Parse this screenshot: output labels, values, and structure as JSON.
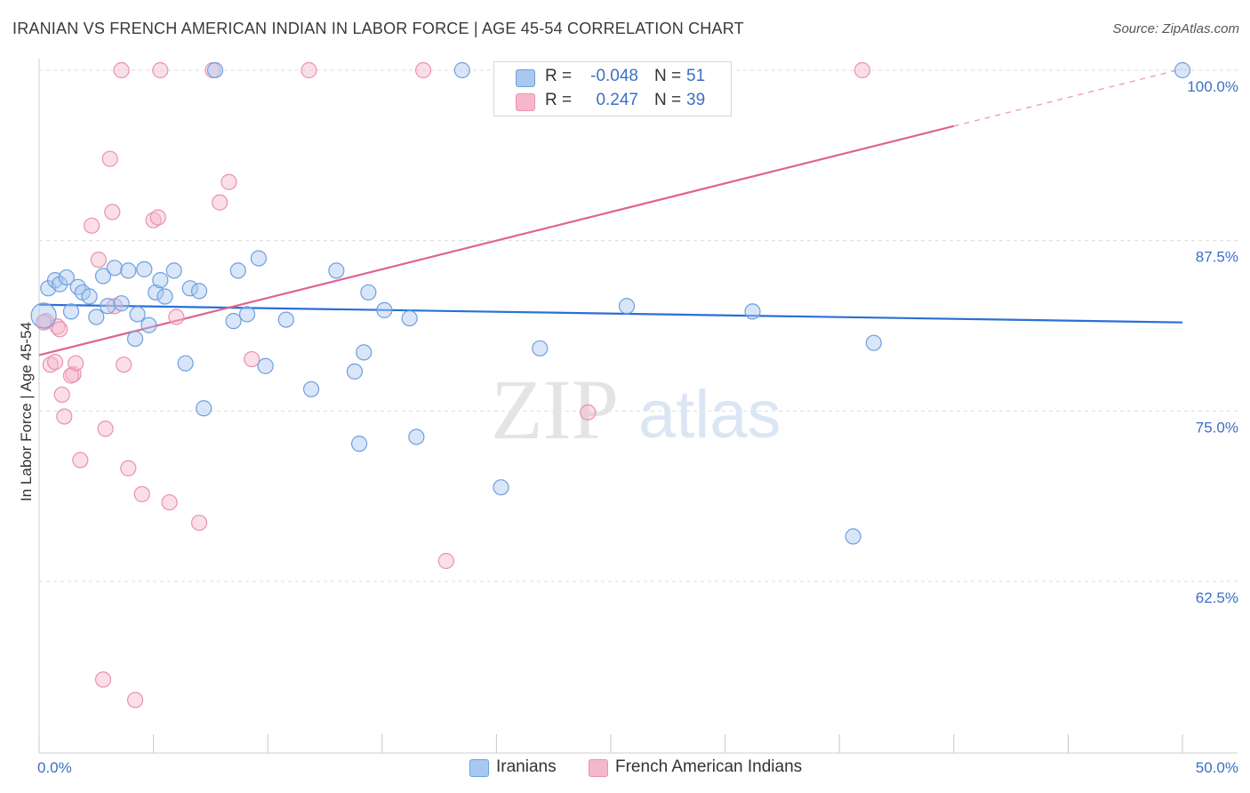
{
  "header": {
    "title": "IRANIAN VS FRENCH AMERICAN INDIAN IN LABOR FORCE | AGE 45-54 CORRELATION CHART",
    "source": "Source: ZipAtlas.com"
  },
  "watermark": {
    "zip": "ZIP",
    "atlas": "atlas"
  },
  "legend": {
    "rows": [
      {
        "r_label": "R =",
        "r_value": "-0.048",
        "n_label": "N =",
        "n_value": "51"
      },
      {
        "r_label": "R =",
        "r_value": "0.247",
        "n_label": "N =",
        "n_value": "39"
      }
    ]
  },
  "bottom_legend": [
    "Iranians",
    "French American Indians"
  ],
  "colors": {
    "series1_fill": "#a9c8f0",
    "series1_stroke": "#6f9fe0",
    "series1_line": "#2a6fd6",
    "series2_fill": "#f5b8cb",
    "series2_stroke": "#ec90ad",
    "series2_line": "#e0648e",
    "tick_text": "#3d6fc4",
    "grid": "#dcdcdc"
  },
  "chart_data": {
    "type": "scatter",
    "title": "IRANIAN VS FRENCH AMERICAN INDIAN IN LABOR FORCE | AGE 45-54 CORRELATION CHART",
    "xlabel": "",
    "ylabel": "In Labor Force | Age 45-54",
    "xlim": [
      0,
      50
    ],
    "ylim": [
      51.5,
      101.5
    ],
    "x_tick_labels": [
      "0.0%",
      "50.0%"
    ],
    "y_ticks": [
      100,
      87.5,
      75,
      62.5
    ],
    "y_tick_labels": [
      "100.0%",
      "87.5%",
      "75.0%",
      "62.5%"
    ],
    "grid": true,
    "legend_position": "top-center",
    "series": [
      {
        "name": "Iranians",
        "trend": {
          "x": [
            0,
            50
          ],
          "y": [
            82.8,
            81.5
          ]
        },
        "points": [
          [
            0.4,
            84.0
          ],
          [
            0.7,
            84.6
          ],
          [
            0.9,
            84.3
          ],
          [
            1.2,
            84.8
          ],
          [
            1.4,
            82.3
          ],
          [
            1.7,
            84.1
          ],
          [
            1.9,
            83.7
          ],
          [
            2.2,
            83.4
          ],
          [
            2.5,
            81.9
          ],
          [
            2.8,
            84.9
          ],
          [
            3.0,
            82.7
          ],
          [
            3.3,
            85.5
          ],
          [
            3.6,
            82.9
          ],
          [
            3.9,
            85.3
          ],
          [
            4.2,
            80.3
          ],
          [
            4.3,
            82.1
          ],
          [
            4.6,
            85.4
          ],
          [
            4.8,
            81.3
          ],
          [
            5.1,
            83.7
          ],
          [
            5.3,
            84.6
          ],
          [
            5.5,
            83.4
          ],
          [
            5.9,
            85.3
          ],
          [
            6.4,
            78.5
          ],
          [
            6.6,
            84.0
          ],
          [
            7.0,
            83.8
          ],
          [
            7.2,
            75.2
          ],
          [
            7.7,
            100.0
          ],
          [
            8.5,
            81.6
          ],
          [
            8.7,
            85.3
          ],
          [
            9.1,
            82.1
          ],
          [
            9.6,
            86.2
          ],
          [
            9.9,
            78.3
          ],
          [
            10.8,
            81.7
          ],
          [
            11.9,
            76.6
          ],
          [
            13.0,
            85.3
          ],
          [
            13.8,
            77.9
          ],
          [
            14.0,
            72.6
          ],
          [
            14.2,
            79.3
          ],
          [
            14.4,
            83.7
          ],
          [
            15.1,
            82.4
          ],
          [
            16.2,
            81.8
          ],
          [
            16.5,
            73.1
          ],
          [
            18.5,
            100.0
          ],
          [
            20.2,
            69.4
          ],
          [
            21.9,
            79.6
          ],
          [
            25.7,
            82.7
          ],
          [
            31.2,
            82.3
          ],
          [
            35.6,
            65.8
          ],
          [
            36.5,
            80.0
          ],
          [
            50.0,
            100.0
          ],
          [
            0.2,
            82.0
          ]
        ]
      },
      {
        "name": "French American Indians",
        "trend": {
          "x": [
            0,
            40
          ],
          "y": [
            79.1,
            95.9
          ]
        },
        "trend_dashed": {
          "x": [
            40,
            50
          ],
          "y": [
            95.9,
            100.1
          ]
        },
        "points": [
          [
            0.3,
            81.6
          ],
          [
            0.5,
            78.4
          ],
          [
            0.7,
            78.6
          ],
          [
            0.8,
            81.2
          ],
          [
            1.0,
            76.2
          ],
          [
            1.1,
            74.6
          ],
          [
            1.5,
            77.7
          ],
          [
            1.6,
            78.5
          ],
          [
            1.8,
            71.4
          ],
          [
            2.3,
            88.6
          ],
          [
            2.6,
            86.1
          ],
          [
            2.8,
            55.3
          ],
          [
            2.9,
            73.7
          ],
          [
            3.1,
            93.5
          ],
          [
            3.2,
            89.6
          ],
          [
            3.3,
            82.7
          ],
          [
            3.6,
            100.0
          ],
          [
            3.7,
            78.4
          ],
          [
            3.9,
            70.8
          ],
          [
            4.2,
            53.8
          ],
          [
            4.5,
            68.9
          ],
          [
            5.0,
            89.0
          ],
          [
            5.2,
            89.2
          ],
          [
            5.3,
            100.0
          ],
          [
            5.7,
            68.3
          ],
          [
            6.0,
            81.9
          ],
          [
            7.0,
            66.8
          ],
          [
            7.6,
            100.0
          ],
          [
            7.9,
            90.3
          ],
          [
            8.3,
            91.8
          ],
          [
            9.3,
            78.8
          ],
          [
            11.8,
            100.0
          ],
          [
            16.8,
            100.0
          ],
          [
            17.8,
            64.0
          ],
          [
            24.0,
            74.9
          ],
          [
            36.0,
            100.0
          ],
          [
            0.2,
            81.5
          ],
          [
            0.9,
            81.0
          ],
          [
            1.4,
            77.6
          ]
        ]
      }
    ]
  }
}
